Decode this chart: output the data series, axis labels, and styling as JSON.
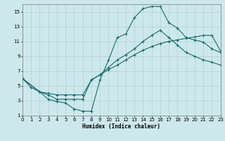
{
  "xlabel": "Humidex (Indice chaleur)",
  "bg_color": "#cde8ec",
  "grid_color": "#aaccd0",
  "line_color": "#1a6b6b",
  "xlim": [
    0,
    23
  ],
  "ylim": [
    1,
    16
  ],
  "xticks": [
    0,
    1,
    2,
    3,
    4,
    5,
    6,
    7,
    8,
    9,
    10,
    11,
    12,
    13,
    14,
    15,
    16,
    17,
    18,
    19,
    20,
    21,
    22,
    23
  ],
  "yticks": [
    1,
    3,
    5,
    7,
    9,
    11,
    13,
    15
  ],
  "curve1_x": [
    0,
    1,
    2,
    3,
    4,
    5,
    6,
    7,
    8,
    9,
    10,
    11,
    12,
    13,
    14,
    15,
    16,
    17,
    18,
    19,
    20,
    21,
    22,
    23
  ],
  "curve1_y": [
    6.0,
    4.8,
    4.2,
    3.2,
    2.9,
    2.7,
    1.9,
    1.6,
    1.6,
    5.8,
    8.5,
    11.5,
    12.0,
    14.2,
    15.4,
    15.7,
    15.7,
    13.5,
    12.8,
    11.5,
    11.2,
    10.9,
    10.0,
    9.5
  ],
  "curve2_x": [
    0,
    2,
    3,
    4,
    5,
    6,
    7,
    8,
    9,
    10,
    11,
    12,
    13,
    14,
    15,
    16,
    17,
    18,
    19,
    20,
    21,
    22,
    23
  ],
  "curve2_y": [
    6.0,
    4.2,
    3.8,
    3.2,
    3.2,
    3.2,
    3.2,
    5.8,
    6.5,
    7.5,
    8.5,
    9.2,
    10.0,
    11.0,
    11.8,
    12.5,
    11.5,
    10.5,
    9.5,
    9.0,
    8.5,
    8.2,
    7.8
  ],
  "curve3_x": [
    0,
    2,
    3,
    4,
    5,
    6,
    7,
    8,
    9,
    10,
    11,
    12,
    13,
    14,
    15,
    16,
    17,
    18,
    19,
    20,
    21,
    22,
    23
  ],
  "curve3_y": [
    6.0,
    4.2,
    4.0,
    3.8,
    3.8,
    3.8,
    3.8,
    5.8,
    6.5,
    7.2,
    7.8,
    8.5,
    9.2,
    9.8,
    10.3,
    10.7,
    11.0,
    11.2,
    11.4,
    11.6,
    11.8,
    11.8,
    9.7
  ]
}
